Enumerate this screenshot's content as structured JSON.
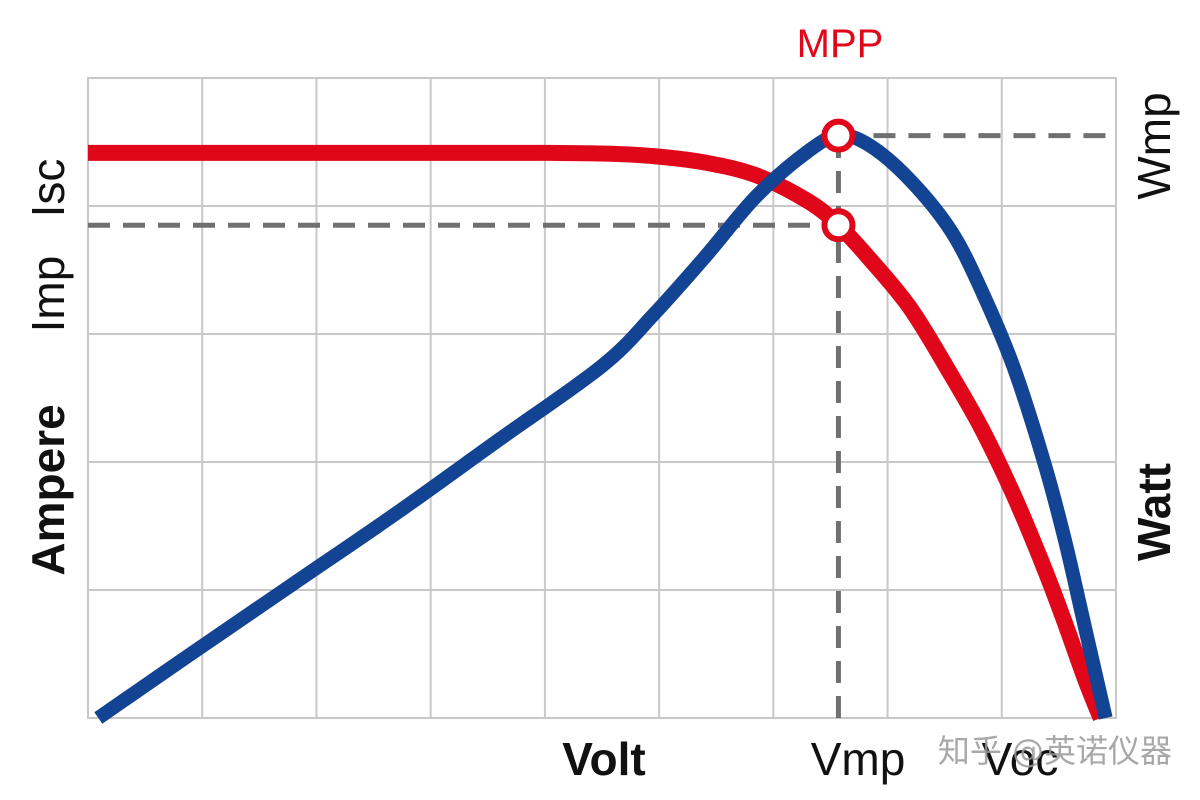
{
  "chart_data": {
    "type": "line",
    "title": "",
    "xlabel": "Volt",
    "ylabel_left": "Ampere",
    "ylabel_right": "Watt",
    "x_ticks": [
      "Vmp",
      "Voc"
    ],
    "y_left_ticks": [
      "Imp",
      "Isc"
    ],
    "y_right_ticks": [
      "Wmp"
    ],
    "annotation": "MPP",
    "xlim": [
      0,
      1
    ],
    "ylim": [
      0,
      1
    ],
    "grid": true,
    "colors": {
      "current": "#e0071b",
      "power": "#134494",
      "guide": "#707070",
      "grid": "#c8c8c8"
    },
    "mpp": {
      "v": 0.73,
      "i": 0.77,
      "p": 0.91
    },
    "series": [
      {
        "key": "current",
        "x": [
          0,
          0.1,
          0.2,
          0.3,
          0.4,
          0.45,
          0.5,
          0.55,
          0.6,
          0.65,
          0.7,
          0.73,
          0.76,
          0.8,
          0.84,
          0.87,
          0.9,
          0.93,
          0.95,
          0.97,
          0.985
        ],
        "y": [
          0.883,
          0.883,
          0.883,
          0.883,
          0.883,
          0.883,
          0.882,
          0.878,
          0.868,
          0.848,
          0.808,
          0.77,
          0.718,
          0.64,
          0.535,
          0.45,
          0.35,
          0.235,
          0.15,
          0.06,
          0
        ]
      },
      {
        "key": "power",
        "x": [
          0.01,
          0.1,
          0.2,
          0.3,
          0.4,
          0.5,
          0.55,
          0.6,
          0.65,
          0.7,
          0.73,
          0.76,
          0.8,
          0.84,
          0.87,
          0.9,
          0.93,
          0.95,
          0.97,
          0.99
        ],
        "y": [
          0,
          0.1,
          0.21,
          0.32,
          0.435,
          0.55,
          0.63,
          0.72,
          0.815,
          0.885,
          0.91,
          0.895,
          0.84,
          0.76,
          0.665,
          0.55,
          0.4,
          0.28,
          0.14,
          0
        ]
      }
    ],
    "watermark": "知乎 @英诺仪器"
  }
}
